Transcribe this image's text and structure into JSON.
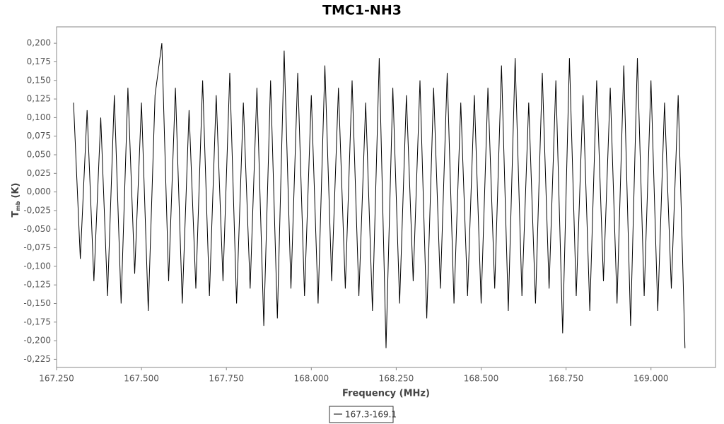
{
  "chart_data": {
    "type": "line",
    "title": "TMC1-NH3",
    "x_label": "Frequency (MHz)",
    "y_label": {
      "symbol": "T",
      "subscript": "mb",
      "unit": "(K)"
    },
    "x": [
      167.3,
      167.32,
      167.34,
      167.36,
      167.38,
      167.4,
      167.42,
      167.44,
      167.46,
      167.48,
      167.5,
      167.52,
      167.54,
      167.56,
      167.58,
      167.6,
      167.62,
      167.64,
      167.66,
      167.68,
      167.7,
      167.72,
      167.74,
      167.76,
      167.78,
      167.8,
      167.82,
      167.84,
      167.86,
      167.88,
      167.9,
      167.92,
      167.94,
      167.96,
      167.98,
      168.0,
      168.02,
      168.04,
      168.06,
      168.08,
      168.1,
      168.12,
      168.14,
      168.16,
      168.18,
      168.2,
      168.22,
      168.24,
      168.26,
      168.28,
      168.3,
      168.32,
      168.34,
      168.36,
      168.38,
      168.4,
      168.42,
      168.44,
      168.46,
      168.48,
      168.5,
      168.52,
      168.54,
      168.56,
      168.58,
      168.6,
      168.62,
      168.64,
      168.66,
      168.68,
      168.7,
      168.72,
      168.74,
      168.76,
      168.78,
      168.8,
      168.82,
      168.84,
      168.86,
      168.88,
      168.9,
      168.92,
      168.94,
      168.96,
      168.98,
      169.0,
      169.02,
      169.04,
      169.06,
      169.08,
      169.1
    ],
    "series": [
      {
        "name": "167.3-169.1",
        "color": "#000000",
        "values": [
          0.12,
          -0.09,
          0.11,
          -0.12,
          0.1,
          -0.14,
          0.13,
          -0.15,
          0.14,
          -0.11,
          0.12,
          -0.16,
          0.13,
          0.2,
          -0.12,
          0.14,
          -0.15,
          0.11,
          -0.13,
          0.15,
          -0.14,
          0.13,
          -0.12,
          0.16,
          -0.15,
          0.12,
          -0.13,
          0.14,
          -0.18,
          0.15,
          -0.17,
          0.19,
          -0.13,
          0.16,
          -0.14,
          0.13,
          -0.15,
          0.17,
          -0.12,
          0.14,
          -0.13,
          0.15,
          -0.14,
          0.12,
          -0.16,
          0.18,
          -0.21,
          0.14,
          -0.15,
          0.13,
          -0.12,
          0.15,
          -0.17,
          0.14,
          -0.13,
          0.16,
          -0.15,
          0.12,
          -0.14,
          0.13,
          -0.15,
          0.14,
          -0.13,
          0.17,
          -0.16,
          0.18,
          -0.14,
          0.12,
          -0.15,
          0.16,
          -0.13,
          0.15,
          -0.19,
          0.18,
          -0.14,
          0.13,
          -0.16,
          0.15,
          -0.12,
          0.14,
          -0.15,
          0.17,
          -0.18,
          0.18,
          -0.14,
          0.15,
          -0.16,
          0.12,
          -0.13,
          0.13,
          -0.21
        ]
      }
    ],
    "xlim": [
      167.25,
      169.19
    ],
    "ylim": [
      -0.236,
      0.222
    ],
    "xticks": [
      {
        "value": 167.25,
        "label": "167.250"
      },
      {
        "value": 167.5,
        "label": "167.500"
      },
      {
        "value": 167.75,
        "label": "167.750"
      },
      {
        "value": 168,
        "label": "168.000"
      },
      {
        "value": 168.25,
        "label": "168.250"
      },
      {
        "value": 168.5,
        "label": "168.500"
      },
      {
        "value": 168.75,
        "label": "168.750"
      },
      {
        "value": 169,
        "label": "169.000"
      }
    ],
    "yticks": [
      {
        "value": 0.2,
        "label": "0,200"
      },
      {
        "value": 0.175,
        "label": "0,175"
      },
      {
        "value": 0.15,
        "label": "0,150"
      },
      {
        "value": 0.125,
        "label": "0,125"
      },
      {
        "value": 0.1,
        "label": "0,100"
      },
      {
        "value": 0.075,
        "label": "0,075"
      },
      {
        "value": 0.05,
        "label": "0,050"
      },
      {
        "value": 0.025,
        "label": "0,025"
      },
      {
        "value": 0,
        "label": "0,000"
      },
      {
        "value": -0.025,
        "label": "-0,025"
      },
      {
        "value": -0.05,
        "label": "-0,050"
      },
      {
        "value": -0.075,
        "label": "-0,075"
      },
      {
        "value": -0.1,
        "label": "-0,100"
      },
      {
        "value": -0.125,
        "label": "-0,125"
      },
      {
        "value": -0.15,
        "label": "-0,150"
      },
      {
        "value": -0.175,
        "label": "-0,175"
      },
      {
        "value": -0.2,
        "label": "-0,200"
      },
      {
        "value": -0.225,
        "label": "-0,225"
      }
    ],
    "grid": false
  }
}
